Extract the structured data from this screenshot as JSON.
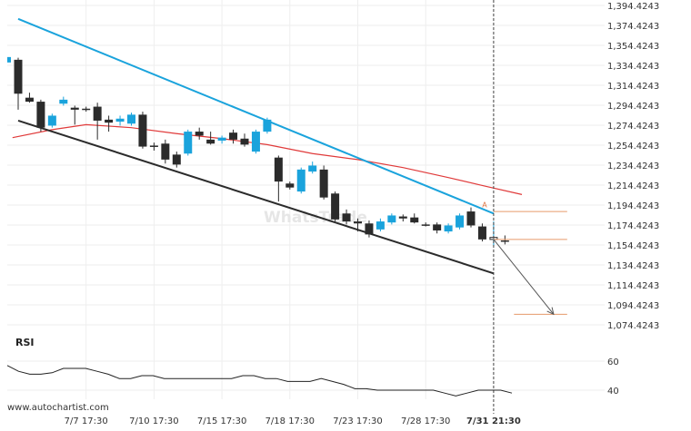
{
  "chart_data": {
    "type": "candlestick",
    "watermark": "WhatsTrade",
    "footer": "www.autochartist.com",
    "price_axis": {
      "ticks": [
        "1,394.4243",
        "1,374.4243",
        "1,354.4243",
        "1,334.4243",
        "1,314.4243",
        "1,294.4243",
        "1,274.4243",
        "1,254.4243",
        "1,234.4243",
        "1,214.4243",
        "1,194.4243",
        "1,174.4243",
        "1,154.4243",
        "1,134.4243",
        "1,114.4243",
        "1,094.4243",
        "1,074.4243"
      ],
      "tick_values": [
        1394.4243,
        1374.4243,
        1354.4243,
        1334.4243,
        1314.4243,
        1294.4243,
        1274.4243,
        1254.4243,
        1234.4243,
        1214.4243,
        1194.4243,
        1174.4243,
        1154.4243,
        1134.4243,
        1114.4243,
        1094.4243,
        1074.4243
      ],
      "range": [
        1070,
        1398
      ]
    },
    "time_axis": {
      "labels": [
        "7/7 17:30",
        "7/10 17:30",
        "7/15 17:30",
        "7/18 17:30",
        "7/23 17:30",
        "7/28 17:30",
        "7/31 21:30"
      ],
      "label_index": [
        6,
        12,
        18,
        24,
        30,
        36,
        42
      ]
    },
    "candles": [
      {
        "o": 1340,
        "h": 1342,
        "l": 1290,
        "c": 1306,
        "dir": "down"
      },
      {
        "o": 1302,
        "h": 1307,
        "l": 1297,
        "c": 1298,
        "dir": "down"
      },
      {
        "o": 1298,
        "h": 1300,
        "l": 1268,
        "c": 1272,
        "dir": "down"
      },
      {
        "o": 1274,
        "h": 1286,
        "l": 1272,
        "c": 1284,
        "dir": "up"
      },
      {
        "o": 1296,
        "h": 1303,
        "l": 1294,
        "c": 1300,
        "dir": "up"
      },
      {
        "o": 1292,
        "h": 1294,
        "l": 1275,
        "c": 1290,
        "dir": "down"
      },
      {
        "o": 1291,
        "h": 1293,
        "l": 1288,
        "c": 1290,
        "dir": "down"
      },
      {
        "o": 1293,
        "h": 1297,
        "l": 1260,
        "c": 1279,
        "dir": "down"
      },
      {
        "o": 1280,
        "h": 1284,
        "l": 1268,
        "c": 1277,
        "dir": "down"
      },
      {
        "o": 1281,
        "h": 1284,
        "l": 1274,
        "c": 1278,
        "dir": "up"
      },
      {
        "o": 1276,
        "h": 1287,
        "l": 1274,
        "c": 1285,
        "dir": "up"
      },
      {
        "o": 1285,
        "h": 1288,
        "l": 1251,
        "c": 1253,
        "dir": "down"
      },
      {
        "o": 1254,
        "h": 1257,
        "l": 1249,
        "c": 1253,
        "dir": "down"
      },
      {
        "o": 1256,
        "h": 1260,
        "l": 1236,
        "c": 1240,
        "dir": "down"
      },
      {
        "o": 1245,
        "h": 1248,
        "l": 1232,
        "c": 1235,
        "dir": "down"
      },
      {
        "o": 1246,
        "h": 1270,
        "l": 1244,
        "c": 1268,
        "dir": "up"
      },
      {
        "o": 1268,
        "h": 1272,
        "l": 1260,
        "c": 1264,
        "dir": "down"
      },
      {
        "o": 1260,
        "h": 1268,
        "l": 1255,
        "c": 1256,
        "dir": "down"
      },
      {
        "o": 1259,
        "h": 1264,
        "l": 1256,
        "c": 1262,
        "dir": "up"
      },
      {
        "o": 1267,
        "h": 1270,
        "l": 1256,
        "c": 1260,
        "dir": "down"
      },
      {
        "o": 1261,
        "h": 1266,
        "l": 1253,
        "c": 1255,
        "dir": "down"
      },
      {
        "o": 1248,
        "h": 1270,
        "l": 1246,
        "c": 1268,
        "dir": "up"
      },
      {
        "o": 1268,
        "h": 1282,
        "l": 1266,
        "c": 1280,
        "dir": "up"
      },
      {
        "o": 1242,
        "h": 1244,
        "l": 1198,
        "c": 1218,
        "dir": "down"
      },
      {
        "o": 1216,
        "h": 1218,
        "l": 1210,
        "c": 1212,
        "dir": "down"
      },
      {
        "o": 1208,
        "h": 1232,
        "l": 1206,
        "c": 1230,
        "dir": "up"
      },
      {
        "o": 1228,
        "h": 1238,
        "l": 1226,
        "c": 1234,
        "dir": "up"
      },
      {
        "o": 1230,
        "h": 1234,
        "l": 1200,
        "c": 1202,
        "dir": "down"
      },
      {
        "o": 1206,
        "h": 1208,
        "l": 1178,
        "c": 1180,
        "dir": "down"
      },
      {
        "o": 1186,
        "h": 1190,
        "l": 1175,
        "c": 1178,
        "dir": "down"
      },
      {
        "o": 1178,
        "h": 1181,
        "l": 1168,
        "c": 1176,
        "dir": "down"
      },
      {
        "o": 1176,
        "h": 1179,
        "l": 1162,
        "c": 1165,
        "dir": "down"
      },
      {
        "o": 1170,
        "h": 1181,
        "l": 1168,
        "c": 1178,
        "dir": "up"
      },
      {
        "o": 1177,
        "h": 1186,
        "l": 1175,
        "c": 1184,
        "dir": "up"
      },
      {
        "o": 1183,
        "h": 1185,
        "l": 1178,
        "c": 1181,
        "dir": "down"
      },
      {
        "o": 1182,
        "h": 1186,
        "l": 1176,
        "c": 1177,
        "dir": "down"
      },
      {
        "o": 1175,
        "h": 1177,
        "l": 1173,
        "c": 1174,
        "dir": "down"
      },
      {
        "o": 1175,
        "h": 1177,
        "l": 1166,
        "c": 1169,
        "dir": "down"
      },
      {
        "o": 1168,
        "h": 1176,
        "l": 1166,
        "c": 1174,
        "dir": "up"
      },
      {
        "o": 1172,
        "h": 1186,
        "l": 1170,
        "c": 1184,
        "dir": "up"
      },
      {
        "o": 1188,
        "h": 1192,
        "l": 1172,
        "c": 1174,
        "dir": "down"
      },
      {
        "o": 1173,
        "h": 1176,
        "l": 1158,
        "c": 1160,
        "dir": "down"
      },
      {
        "o": 1160,
        "h": 1178,
        "l": 1154,
        "c": 1162,
        "dir": "up"
      },
      {
        "o": 1158,
        "h": 1164,
        "l": 1155,
        "c": 1159,
        "dir": "down"
      }
    ],
    "moving_average": [
      {
        "i": -0.5,
        "v": 1262
      },
      {
        "i": 3,
        "v": 1270
      },
      {
        "i": 6,
        "v": 1275
      },
      {
        "i": 10,
        "v": 1272
      },
      {
        "i": 14,
        "v": 1266
      },
      {
        "i": 18,
        "v": 1261
      },
      {
        "i": 22,
        "v": 1255
      },
      {
        "i": 26,
        "v": 1246
      },
      {
        "i": 30,
        "v": 1240
      },
      {
        "i": 34,
        "v": 1232
      },
      {
        "i": 38,
        "v": 1222
      },
      {
        "i": 41,
        "v": 1214
      },
      {
        "i": 44.5,
        "v": 1205
      }
    ],
    "channel_resistance": {
      "start": {
        "i": 0,
        "v": 1381
      },
      "end": {
        "i": 42,
        "v": 1186
      }
    },
    "channel_support": {
      "start": {
        "i": 0,
        "v": 1279
      },
      "end": {
        "i": 42,
        "v": 1126
      }
    },
    "levels": [
      {
        "name": "breakout_level",
        "value": 1188,
        "from_i": 42,
        "to_i": 48.5
      },
      {
        "name": "current_level",
        "value": 1160,
        "from_i": 42,
        "to_i": 48.5
      },
      {
        "name": "target_level",
        "value": 1085,
        "from_i": 43.8,
        "to_i": 48.5
      }
    ],
    "forecast_arrow": {
      "from": {
        "i": 42,
        "v": 1160
      },
      "to": {
        "i": 47.3,
        "v": 1085
      }
    },
    "breakout_marker": {
      "i": 41.2,
      "v": 1192,
      "label": "A"
    },
    "current_time_index": 42,
    "rsi": {
      "title": "RSI",
      "ticks": [
        "60",
        "40"
      ],
      "tick_values": [
        60,
        40
      ],
      "range": [
        32,
        68
      ],
      "values": [
        57,
        53,
        51,
        51,
        52,
        55,
        55,
        55,
        53,
        51,
        48,
        48,
        50,
        50,
        48,
        48,
        48,
        48,
        48,
        48,
        48,
        50,
        50,
        48,
        48,
        46,
        46,
        46,
        48,
        46,
        44,
        41,
        41,
        40,
        40,
        40,
        40,
        40,
        40,
        38,
        36,
        38,
        40,
        40,
        40,
        38
      ]
    },
    "colors": {
      "up": "#1aa3dc",
      "down": "#2b2b2b",
      "resistance": "#1aa3dc",
      "support": "#2b2b2b",
      "moving_average": "#e03a3a",
      "levels": "#e69a6a",
      "forecast_arrow": "#555555",
      "cursor_line": "#444444"
    }
  }
}
